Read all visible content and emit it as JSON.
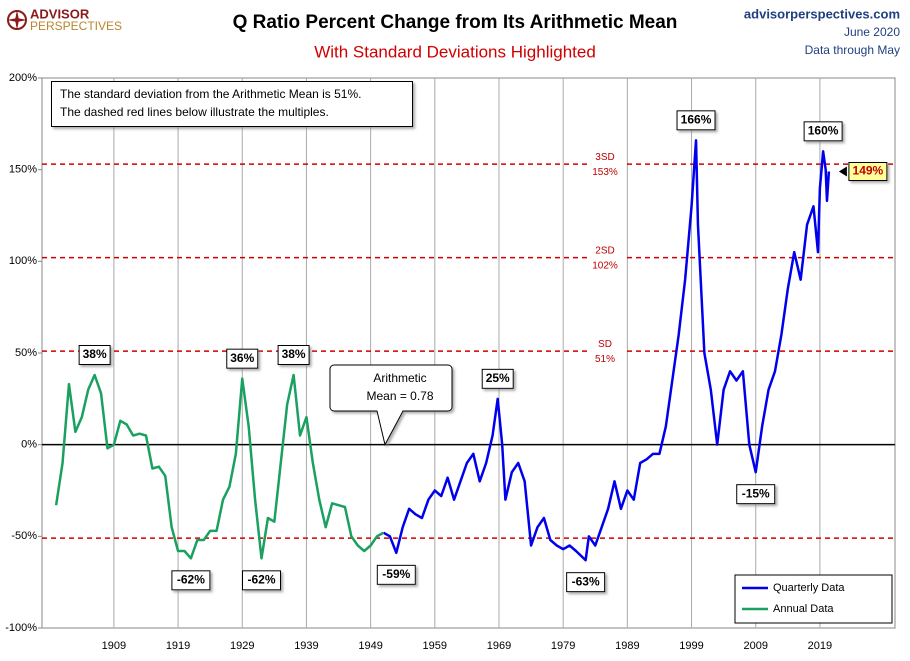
{
  "header": {
    "logo_top": "ADVISOR",
    "logo_bottom": "PERSPECTIVES",
    "site": "advisorperspectives.com",
    "date": "June 2020",
    "note": "Data through May"
  },
  "chart_data": {
    "type": "line",
    "title": "Q Ratio Percent Change from Its Arithmetic Mean",
    "subtitle": "With Standard Deviations Highlighted",
    "text_box": [
      "The standard deviation from the Arithmetic Mean is 51%.",
      "The dashed red lines below illustrate the multiples."
    ],
    "mean_callout": {
      "lines": [
        "Arithmetic",
        "Mean = 0.78"
      ],
      "value": 0
    },
    "xlim": [
      1897.8,
      2030.7
    ],
    "xticks": [
      1909,
      1919,
      1929,
      1939,
      1949,
      1959,
      1969,
      1979,
      1989,
      1999,
      2009,
      2019
    ],
    "ylim": [
      -100,
      200
    ],
    "yticks": [
      {
        "value": -100,
        "label": "-100%"
      },
      {
        "value": -50,
        "label": "-50%"
      },
      {
        "value": 0,
        "label": "0%"
      },
      {
        "value": 50,
        "label": "50%"
      },
      {
        "value": 100,
        "label": "100%"
      },
      {
        "value": 150,
        "label": "150%"
      },
      {
        "value": 200,
        "label": "200%"
      }
    ],
    "grid": true,
    "ref_lines": [
      {
        "name": "3SD",
        "value": 153,
        "label": "153%"
      },
      {
        "name": "2SD",
        "value": 102,
        "label": "102%"
      },
      {
        "name": "SD",
        "value": 51,
        "label": "51%"
      },
      {
        "value": -51
      }
    ],
    "series": [
      {
        "name": "Quarterly Data",
        "color": "#0000ee",
        "x": [
          1951,
          1952,
          1953,
          1954,
          1955,
          1956,
          1957,
          1958,
          1959,
          1960,
          1961,
          1962,
          1963,
          1964,
          1965,
          1966,
          1967,
          1968,
          1968.8,
          1969.5,
          1970,
          1971,
          1972,
          1973,
          1974,
          1975,
          1976,
          1977,
          1978,
          1979,
          1980,
          1981,
          1982.5,
          1983,
          1984,
          1985,
          1986,
          1987,
          1988,
          1989,
          1990,
          1991,
          1992,
          1993,
          1994,
          1995,
          1996,
          1997,
          1998,
          1999,
          1999.7,
          2000,
          2001,
          2002,
          2003,
          2004,
          2005,
          2006,
          2007,
          2008,
          2009,
          2010,
          2011,
          2012,
          2013,
          2014,
          2015,
          2016,
          2017,
          2018,
          2018.7,
          2019,
          2019.5,
          2019.9,
          2020.1,
          2020.4
        ],
        "values": [
          -48,
          -50,
          -59,
          -45,
          -35,
          -38,
          -40,
          -30,
          -25,
          -28,
          -18,
          -30,
          -20,
          -10,
          -5,
          -20,
          -10,
          5,
          25,
          0,
          -30,
          -15,
          -10,
          -20,
          -55,
          -45,
          -40,
          -52,
          -55,
          -57,
          -55,
          -58,
          -63,
          -50,
          -55,
          -45,
          -35,
          -20,
          -35,
          -25,
          -30,
          -10,
          -8,
          -5,
          -5,
          10,
          35,
          60,
          90,
          130,
          166,
          120,
          50,
          30,
          0,
          30,
          40,
          35,
          40,
          0,
          -15,
          10,
          30,
          40,
          60,
          85,
          105,
          90,
          120,
          130,
          105,
          140,
          160,
          150,
          133,
          149
        ]
      },
      {
        "name": "Annual Data",
        "color": "#1aa060",
        "x": [
          1900,
          1901,
          1902,
          1903,
          1904,
          1905,
          1906,
          1907,
          1908,
          1909,
          1910,
          1911,
          1912,
          1913,
          1914,
          1915,
          1916,
          1917,
          1918,
          1919,
          1920,
          1921,
          1922,
          1923,
          1924,
          1925,
          1926,
          1927,
          1928,
          1929,
          1930,
          1931,
          1932,
          1933,
          1934,
          1935,
          1936,
          1937,
          1938,
          1939,
          1940,
          1941,
          1942,
          1943,
          1944,
          1945,
          1946,
          1947,
          1948,
          1949,
          1950,
          1951
        ],
        "values": [
          -33,
          -10,
          33,
          7,
          15,
          30,
          38,
          28,
          -2,
          0,
          13,
          11,
          5,
          6,
          5,
          -13,
          -12,
          -17,
          -45,
          -58,
          -58,
          -62,
          -52,
          -52,
          -47,
          -47,
          -30,
          -23,
          -5,
          36,
          10,
          -30,
          -62,
          -40,
          -42,
          -10,
          22,
          38,
          5,
          15,
          -10,
          -30,
          -45,
          -32,
          -33,
          -34,
          -50,
          -55,
          -58,
          -55,
          -50,
          -48
        ]
      }
    ],
    "annotations": [
      {
        "x": 1906,
        "value": 38,
        "label": "38%"
      },
      {
        "x": 1921,
        "value": -62,
        "label": "-62%"
      },
      {
        "x": 1929,
        "value": 36,
        "label": "36%"
      },
      {
        "x": 1932,
        "value": -62,
        "label": "-62%"
      },
      {
        "x": 1937,
        "value": 38,
        "label": "38%"
      },
      {
        "x": 1953,
        "value": -59,
        "label": "-59%"
      },
      {
        "x": 1968.8,
        "value": 25,
        "label": "25%"
      },
      {
        "x": 1982.5,
        "value": -63,
        "label": "-63%"
      },
      {
        "x": 1999.7,
        "value": 166,
        "label": "166%"
      },
      {
        "x": 2009,
        "value": -15,
        "label": "-15%"
      },
      {
        "x": 2019.5,
        "value": 160,
        "label": "160%"
      }
    ],
    "current": {
      "x": 2020.4,
      "value": 149,
      "label": "149%"
    },
    "legend": "bottom-right"
  }
}
